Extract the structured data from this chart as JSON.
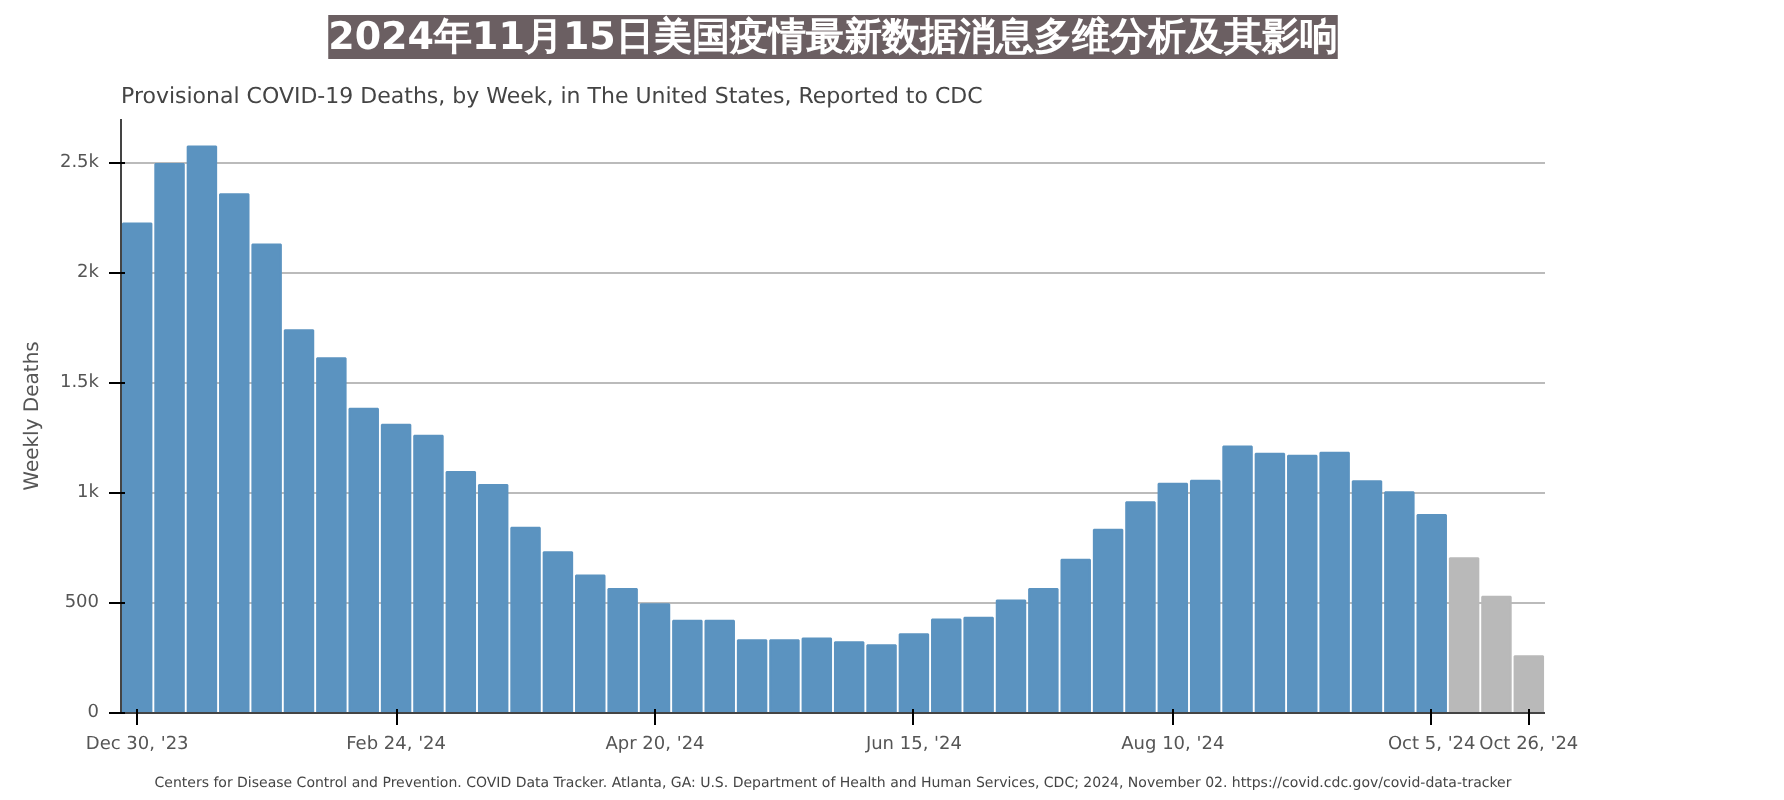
{
  "chart_data": {
    "type": "bar",
    "title": "2024年11月15日美国疫情最新数据消息多维分析及其影响",
    "subtitle": "Provisional COVID-19 Deaths, by Week, in The United States, Reported to CDC",
    "ylabel": "Weekly Deaths",
    "annotations": [
      "Centers for Disease Control and Prevention. COVID Data Tracker. Atlanta, GA: U.S. Department of Health and Human Services, CDC; 2024, November 02. https://covid.cdc.gov/covid-data-tracker"
    ],
    "x": [
      "2023-12-30",
      "2024-01-06",
      "2024-01-13",
      "2024-01-20",
      "2024-01-27",
      "2024-02-03",
      "2024-02-10",
      "2024-02-17",
      "2024-02-24",
      "2024-03-02",
      "2024-03-09",
      "2024-03-16",
      "2024-03-23",
      "2024-03-30",
      "2024-04-06",
      "2024-04-13",
      "2024-04-20",
      "2024-04-27",
      "2024-05-04",
      "2024-05-11",
      "2024-05-18",
      "2024-05-25",
      "2024-06-01",
      "2024-06-08",
      "2024-06-15",
      "2024-06-22",
      "2024-06-29",
      "2024-07-06",
      "2024-07-13",
      "2024-07-20",
      "2024-07-27",
      "2024-08-03",
      "2024-08-10",
      "2024-08-17",
      "2024-08-24",
      "2024-08-31",
      "2024-09-07",
      "2024-09-14",
      "2024-09-21",
      "2024-09-28",
      "2024-10-05",
      "2024-10-12",
      "2024-10-19",
      "2024-10-26"
    ],
    "values": [
      2225,
      2495,
      2575,
      2358,
      2130,
      1740,
      1612,
      1383,
      1310,
      1260,
      1095,
      1036,
      842,
      731,
      625,
      564,
      494,
      419,
      419,
      331,
      331,
      339,
      322,
      308,
      358,
      425,
      433,
      511,
      564,
      697,
      833,
      958,
      1042,
      1056,
      1211,
      1178,
      1169,
      1183,
      1053,
      1003,
      900,
      703,
      528,
      258
    ],
    "colors": [
      "#5b93c0",
      "#5b93c0",
      "#5b93c0",
      "#5b93c0",
      "#5b93c0",
      "#5b93c0",
      "#5b93c0",
      "#5b93c0",
      "#5b93c0",
      "#5b93c0",
      "#5b93c0",
      "#5b93c0",
      "#5b93c0",
      "#5b93c0",
      "#5b93c0",
      "#5b93c0",
      "#5b93c0",
      "#5b93c0",
      "#5b93c0",
      "#5b93c0",
      "#5b93c0",
      "#5b93c0",
      "#5b93c0",
      "#5b93c0",
      "#5b93c0",
      "#5b93c0",
      "#5b93c0",
      "#5b93c0",
      "#5b93c0",
      "#5b93c0",
      "#5b93c0",
      "#5b93c0",
      "#5b93c0",
      "#5b93c0",
      "#5b93c0",
      "#5b93c0",
      "#5b93c0",
      "#5b93c0",
      "#5b93c0",
      "#5b93c0",
      "#5b93c0",
      "#b9b9b9",
      "#b9b9b9",
      "#b9b9b9"
    ],
    "xlim": [
      "2023-12-26T12:00",
      "2024-10-29T12:00"
    ],
    "xticks": [
      {
        "value": "2023-12-30",
        "label": "Dec 30, '23"
      },
      {
        "value": "2024-02-24",
        "label": "Feb 24, '24"
      },
      {
        "value": "2024-04-20",
        "label": "Apr 20, '24"
      },
      {
        "value": "2024-06-15",
        "label": "Jun 15, '24"
      },
      {
        "value": "2024-08-10",
        "label": "Aug 10, '24"
      },
      {
        "value": "2024-10-05",
        "label": "Oct 5, '24"
      },
      {
        "value": "2024-10-26",
        "label": "Oct 26, '24"
      }
    ],
    "ylim": [
      0,
      2700
    ],
    "yticks": [
      0,
      500,
      {
        "value": 1000,
        "label": "1k"
      },
      {
        "value": 1500,
        "label": "1.5k"
      },
      {
        "value": 2000,
        "label": "2k"
      },
      {
        "value": 2500,
        "label": "2.5k"
      }
    ],
    "grid": "y"
  }
}
